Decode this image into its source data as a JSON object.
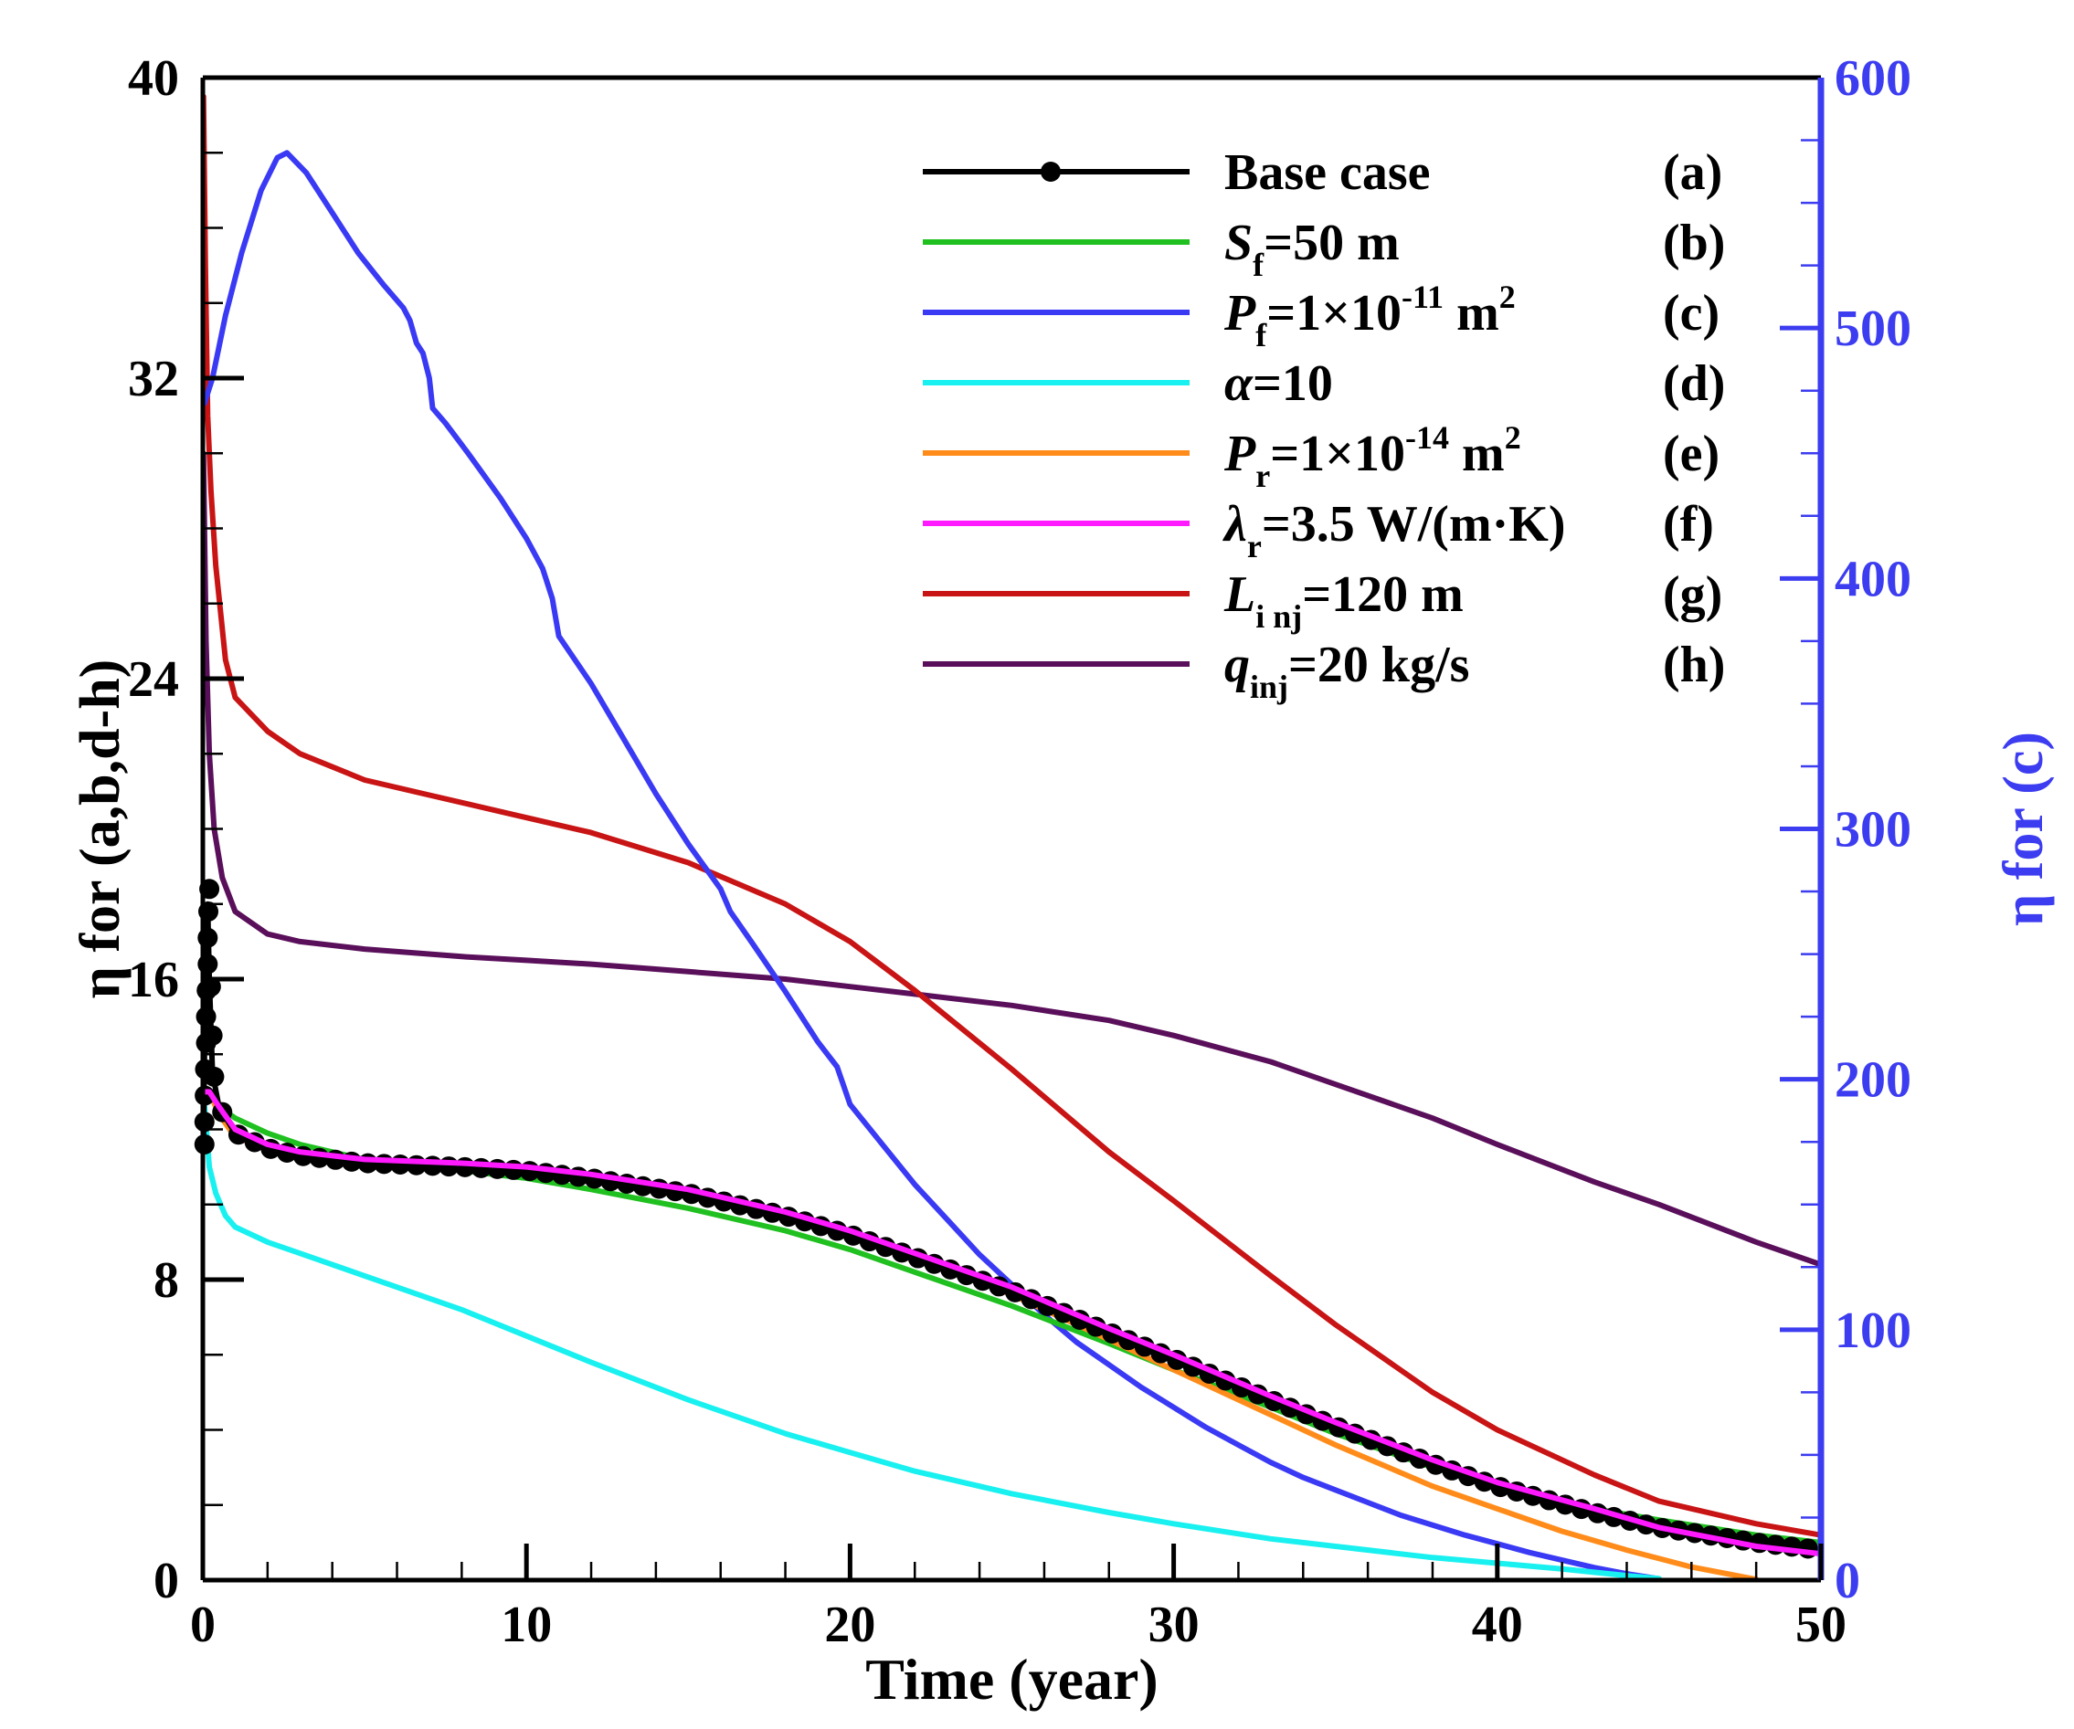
{
  "chart_data": {
    "type": "line",
    "xlabel": "Time (year)",
    "ylabel_left": "η for (a,b,d-h)",
    "ylabel_right": "η for (c)",
    "xlim": [
      0,
      50
    ],
    "ylim_left": [
      0,
      40
    ],
    "ylim_right": [
      0,
      600
    ],
    "x_ticks": [
      "0",
      "10",
      "20",
      "30",
      "40",
      "50"
    ],
    "y_left_ticks": [
      "0",
      "8",
      "16",
      "24",
      "32",
      "40"
    ],
    "y_right_ticks": [
      "0",
      "100",
      "200",
      "300",
      "400",
      "500",
      "600"
    ],
    "colors": {
      "axis_left": "#000000",
      "axis_right": "#3c3cf0"
    },
    "series": [
      {
        "id": "a",
        "tag": "(a)",
        "legend_main": "Base case",
        "legend_sub": "",
        "legend_after": "",
        "legend_italic": false,
        "color": "#000000",
        "marker": "circle",
        "axis": "left",
        "points": [
          [
            0.02,
            11.5
          ],
          [
            0.05,
            14
          ],
          [
            0.1,
            17
          ],
          [
            0.15,
            18
          ],
          [
            0.2,
            16
          ],
          [
            0.3,
            13.5
          ],
          [
            0.5,
            12.6
          ],
          [
            1,
            11.9
          ],
          [
            2,
            11.5
          ],
          [
            3,
            11.3
          ],
          [
            5,
            11.1
          ],
          [
            8,
            11.0
          ],
          [
            10,
            10.9
          ],
          [
            12,
            10.7
          ],
          [
            15,
            10.3
          ],
          [
            18,
            9.7
          ],
          [
            20,
            9.2
          ],
          [
            22,
            8.6
          ],
          [
            25,
            7.7
          ],
          [
            28,
            6.6
          ],
          [
            30,
            5.9
          ],
          [
            33,
            4.8
          ],
          [
            35,
            4.1
          ],
          [
            38,
            3.1
          ],
          [
            40,
            2.5
          ],
          [
            43,
            1.8
          ],
          [
            45,
            1.4
          ],
          [
            48,
            1.0
          ],
          [
            50,
            0.8
          ]
        ]
      },
      {
        "id": "b",
        "tag": "(b)",
        "legend_main": "S",
        "legend_sub": "f",
        "legend_after": "=50 m",
        "legend_italic": true,
        "color": "#1fc01f",
        "marker": "none",
        "axis": "left",
        "points": [
          [
            0.02,
            13
          ],
          [
            0.2,
            13
          ],
          [
            0.5,
            12.6
          ],
          [
            1,
            12.3
          ],
          [
            2,
            11.9
          ],
          [
            3,
            11.6
          ],
          [
            5,
            11.2
          ],
          [
            8,
            10.9
          ],
          [
            10,
            10.7
          ],
          [
            12,
            10.4
          ],
          [
            15,
            9.9
          ],
          [
            18,
            9.3
          ],
          [
            20,
            8.8
          ],
          [
            22,
            8.2
          ],
          [
            25,
            7.3
          ],
          [
            28,
            6.3
          ],
          [
            30,
            5.6
          ],
          [
            33,
            4.6
          ],
          [
            35,
            3.9
          ],
          [
            38,
            3.0
          ],
          [
            40,
            2.5
          ],
          [
            43,
            1.9
          ],
          [
            45,
            1.6
          ],
          [
            48,
            1.2
          ],
          [
            50,
            1.0
          ]
        ]
      },
      {
        "id": "c",
        "tag": "(c)",
        "legend_main": "P",
        "legend_sub": "f",
        "legend_after": "=1×10",
        "legend_sup": "-11",
        "legend_tail": " m",
        "legend_tail_sup": "2",
        "legend_italic": true,
        "color": "#3a3af5",
        "marker": "none",
        "axis": "right",
        "points": [
          [
            0.05,
            470
          ],
          [
            0.3,
            480
          ],
          [
            0.7,
            505
          ],
          [
            1.2,
            530
          ],
          [
            1.8,
            555
          ],
          [
            2.3,
            568
          ],
          [
            2.6,
            570
          ],
          [
            3.2,
            562
          ],
          [
            4,
            546
          ],
          [
            4.8,
            530
          ],
          [
            5.6,
            517
          ],
          [
            6.2,
            508
          ],
          [
            6.4,
            503
          ],
          [
            6.6,
            494
          ],
          [
            6.8,
            490
          ],
          [
            7,
            480
          ],
          [
            7.1,
            468
          ],
          [
            7.5,
            462
          ],
          [
            8.2,
            450
          ],
          [
            9.2,
            432
          ],
          [
            10,
            416
          ],
          [
            10.5,
            404
          ],
          [
            10.8,
            392
          ],
          [
            11,
            377
          ],
          [
            12,
            358
          ],
          [
            13,
            336
          ],
          [
            14,
            314
          ],
          [
            15,
            294
          ],
          [
            16,
            276
          ],
          [
            16.3,
            267
          ],
          [
            17,
            254
          ],
          [
            18,
            235
          ],
          [
            19,
            215
          ],
          [
            19.6,
            205
          ],
          [
            20,
            190
          ],
          [
            21,
            174
          ],
          [
            22,
            158
          ],
          [
            23,
            144
          ],
          [
            24,
            130
          ],
          [
            25,
            118
          ],
          [
            26,
            106
          ],
          [
            27,
            95
          ],
          [
            28,
            86
          ],
          [
            29,
            77
          ],
          [
            30,
            69
          ],
          [
            31,
            61
          ],
          [
            32,
            54
          ],
          [
            33,
            47
          ],
          [
            34,
            41
          ],
          [
            35,
            36
          ],
          [
            36,
            31
          ],
          [
            37,
            26
          ],
          [
            38,
            22
          ],
          [
            39,
            18
          ],
          [
            40,
            14.5
          ],
          [
            41,
            11
          ],
          [
            42,
            8
          ],
          [
            43,
            5
          ],
          [
            44,
            2.5
          ],
          [
            45,
            0.5
          ]
        ]
      },
      {
        "id": "d",
        "tag": "(d)",
        "legend_main": "α",
        "legend_sub": "",
        "legend_after": "=10",
        "legend_italic": true,
        "color": "#19f0f0",
        "marker": "none",
        "axis": "left",
        "points": [
          [
            0.02,
            13
          ],
          [
            0.2,
            11
          ],
          [
            0.4,
            10.3
          ],
          [
            0.7,
            9.7
          ],
          [
            1,
            9.4
          ],
          [
            2,
            9.0
          ],
          [
            3,
            8.7
          ],
          [
            5,
            8.1
          ],
          [
            8,
            7.2
          ],
          [
            10,
            6.5
          ],
          [
            12,
            5.8
          ],
          [
            15,
            4.8
          ],
          [
            18,
            3.9
          ],
          [
            20,
            3.4
          ],
          [
            22,
            2.9
          ],
          [
            25,
            2.3
          ],
          [
            28,
            1.8
          ],
          [
            30,
            1.5
          ],
          [
            33,
            1.1
          ],
          [
            35,
            0.9
          ],
          [
            38,
            0.6
          ],
          [
            40,
            0.45
          ],
          [
            42,
            0.3
          ],
          [
            44,
            0.12
          ],
          [
            45,
            0.04
          ]
        ]
      },
      {
        "id": "e",
        "tag": "(e)",
        "legend_main": "P",
        "legend_sub": "r",
        "legend_after": "=1×10",
        "legend_sup": "-14",
        "legend_tail": " m",
        "legend_tail_sup": "2",
        "legend_italic": true,
        "color": "#ff8c1a",
        "marker": "none",
        "axis": "left",
        "points": [
          [
            0.02,
            13
          ],
          [
            0.2,
            13
          ],
          [
            0.5,
            12.4
          ],
          [
            1,
            11.8
          ],
          [
            2,
            11.5
          ],
          [
            3,
            11.3
          ],
          [
            5,
            11.1
          ],
          [
            8,
            11.0
          ],
          [
            10,
            10.9
          ],
          [
            12,
            10.7
          ],
          [
            15,
            10.3
          ],
          [
            18,
            9.7
          ],
          [
            20,
            9.2
          ],
          [
            22,
            8.6
          ],
          [
            25,
            7.6
          ],
          [
            28,
            6.4
          ],
          [
            30,
            5.6
          ],
          [
            33,
            4.4
          ],
          [
            35,
            3.6
          ],
          [
            38,
            2.5
          ],
          [
            40,
            1.9
          ],
          [
            42,
            1.3
          ],
          [
            44,
            0.8
          ],
          [
            46,
            0.35
          ],
          [
            48,
            0.02
          ]
        ]
      },
      {
        "id": "f",
        "tag": "(f)",
        "legend_main": "λ",
        "legend_sub": "r",
        "legend_after": "=3.5 W/(m·K)",
        "legend_italic": true,
        "color": "#ff19ff",
        "marker": "none",
        "axis": "left",
        "points": [
          [
            0.02,
            13
          ],
          [
            0.2,
            13
          ],
          [
            0.5,
            12.6
          ],
          [
            1,
            12.0
          ],
          [
            2,
            11.6
          ],
          [
            3,
            11.4
          ],
          [
            5,
            11.2
          ],
          [
            8,
            11.1
          ],
          [
            10,
            11.0
          ],
          [
            12,
            10.8
          ],
          [
            15,
            10.4
          ],
          [
            18,
            9.8
          ],
          [
            20,
            9.3
          ],
          [
            22,
            8.7
          ],
          [
            25,
            7.8
          ],
          [
            28,
            6.7
          ],
          [
            30,
            6.0
          ],
          [
            33,
            4.9
          ],
          [
            35,
            4.2
          ],
          [
            38,
            3.2
          ],
          [
            40,
            2.6
          ],
          [
            43,
            1.9
          ],
          [
            45,
            1.4
          ],
          [
            48,
            0.9
          ],
          [
            50,
            0.7
          ]
        ]
      },
      {
        "id": "g",
        "tag": "(g)",
        "legend_main": "L",
        "legend_sub": "i nj",
        "legend_after": "=120 m",
        "legend_italic": true,
        "color": "#c81414",
        "marker": "none",
        "axis": "left",
        "points": [
          [
            0.02,
            39.5
          ],
          [
            0.08,
            35
          ],
          [
            0.15,
            31
          ],
          [
            0.25,
            29
          ],
          [
            0.4,
            27
          ],
          [
            0.7,
            24.5
          ],
          [
            1,
            23.5
          ],
          [
            2,
            22.6
          ],
          [
            3,
            22
          ],
          [
            5,
            21.3
          ],
          [
            7,
            20.9
          ],
          [
            10,
            20.3
          ],
          [
            12,
            19.9
          ],
          [
            15,
            19.1
          ],
          [
            18,
            18
          ],
          [
            20,
            17
          ],
          [
            22,
            15.7
          ],
          [
            25,
            13.6
          ],
          [
            28,
            11.4
          ],
          [
            30,
            10.1
          ],
          [
            33,
            8.1
          ],
          [
            35,
            6.8
          ],
          [
            38,
            5
          ],
          [
            40,
            4
          ],
          [
            43,
            2.8
          ],
          [
            45,
            2.1
          ],
          [
            48,
            1.5
          ],
          [
            50,
            1.2
          ]
        ]
      },
      {
        "id": "h",
        "tag": "(h)",
        "legend_main": "q",
        "legend_sub": "inj",
        "legend_after": "=20 kg/s",
        "legend_italic": true,
        "color": "#5a0f5a",
        "marker": "none",
        "axis": "left",
        "points": [
          [
            0.02,
            30
          ],
          [
            0.1,
            25
          ],
          [
            0.2,
            22
          ],
          [
            0.35,
            20
          ],
          [
            0.6,
            18.7
          ],
          [
            1,
            17.8
          ],
          [
            2,
            17.2
          ],
          [
            3,
            17
          ],
          [
            5,
            16.8
          ],
          [
            8,
            16.6
          ],
          [
            10,
            16.5
          ],
          [
            12,
            16.4
          ],
          [
            15,
            16.2
          ],
          [
            18,
            16
          ],
          [
            20,
            15.8
          ],
          [
            22,
            15.6
          ],
          [
            25,
            15.3
          ],
          [
            28,
            14.9
          ],
          [
            30,
            14.5
          ],
          [
            33,
            13.8
          ],
          [
            35,
            13.2
          ],
          [
            38,
            12.3
          ],
          [
            40,
            11.6
          ],
          [
            43,
            10.6
          ],
          [
            45,
            10
          ],
          [
            48,
            9
          ],
          [
            50,
            8.4
          ]
        ]
      }
    ]
  }
}
